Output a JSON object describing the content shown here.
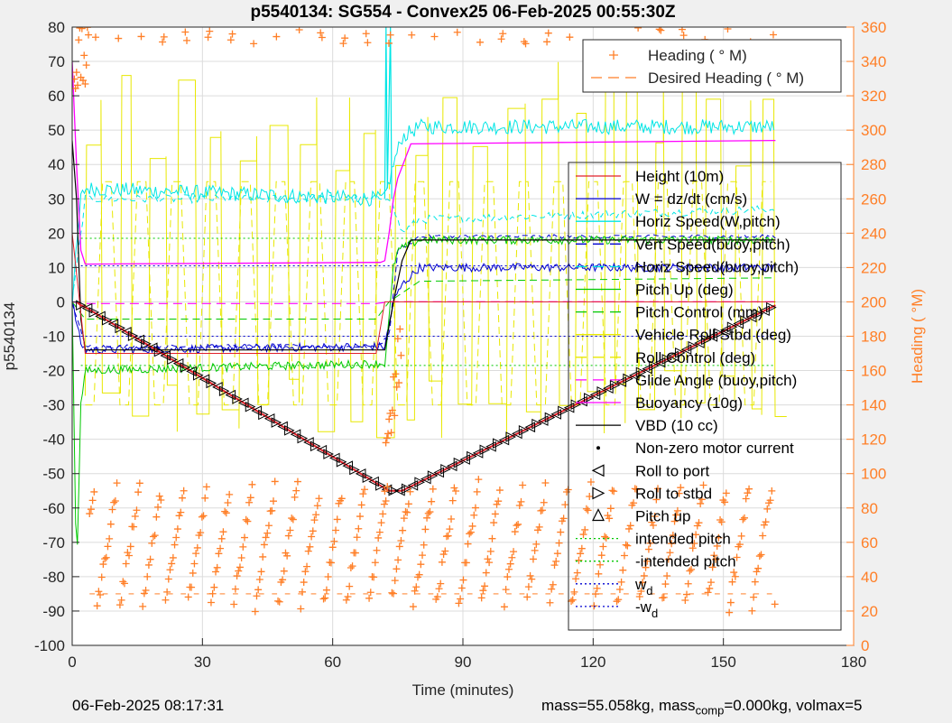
{
  "chart_data": {
    "type": "line",
    "title": "p5540134: SG554 - Convex25 06-Feb-2025 00:55:30Z",
    "xlabel": "Time (minutes)",
    "ylabel": "p5540134",
    "y2label": "Heading (  °M)",
    "xlim": [
      0,
      180
    ],
    "ylim": [
      -100,
      80
    ],
    "y2lim": [
      0,
      360
    ],
    "xticks": [
      "0",
      "30",
      "60",
      "90",
      "120",
      "150",
      "180"
    ],
    "yticks": [
      "-100",
      "-90",
      "-80",
      "-70",
      "-60",
      "-50",
      "-40",
      "-30",
      "-20",
      "-10",
      "0",
      "10",
      "20",
      "30",
      "40",
      "50",
      "60",
      "70",
      "80"
    ],
    "y2ticks": [
      "0",
      "20",
      "40",
      "60",
      "80",
      "100",
      "120",
      "140",
      "160",
      "180",
      "200",
      "220",
      "240",
      "260",
      "280",
      "300",
      "320",
      "340",
      "360"
    ],
    "grid": true,
    "legend_top": [
      {
        "name": "Heading (  ° M)",
        "color": "#ff7f27",
        "style": "plus"
      },
      {
        "name": "Desired Heading (    ° M)",
        "color": "#ff7f27",
        "style": "dash"
      }
    ],
    "legend_main": [
      {
        "name": "Height (10m)",
        "color": "#e0202a",
        "style": "solid"
      },
      {
        "name": "W = dz/dt (cm/s)",
        "color": "#0000d0",
        "style": "solid"
      },
      {
        "name": "Horiz Speed(W,pitch)",
        "color": "#00e5e5",
        "style": "solid"
      },
      {
        "name": "Vert Speed(buoy,pitch)",
        "color": "#0000d0",
        "style": "dash"
      },
      {
        "name": "Horiz Speed(buoy,pitch)",
        "color": "#00e5e5",
        "style": "dash"
      },
      {
        "name": "Pitch Up (deg)",
        "color": "#00c800",
        "style": "solid"
      },
      {
        "name": "Pitch Control (mm)",
        "color": "#00c800",
        "style": "dash"
      },
      {
        "name": "Vehicle Roll Stbd (deg)",
        "color": "#e8e800",
        "style": "solid"
      },
      {
        "name": "Roll Control (deg)",
        "color": "#e8e800",
        "style": "dash"
      },
      {
        "name": "Glide Angle (buoy,pitch)",
        "color": "#ff00ff",
        "style": "dash"
      },
      {
        "name": "Buoyancy (10g)",
        "color": "#ff00ff",
        "style": "solid"
      },
      {
        "name": "VBD (10 cc)",
        "color": "#000000",
        "style": "solid"
      },
      {
        "name": "Non-zero motor current",
        "color": "#000000",
        "style": "dot"
      },
      {
        "name": "Roll to port",
        "color": "#000000",
        "style": "tri-left"
      },
      {
        "name": "Roll to stbd",
        "color": "#000000",
        "style": "tri-right"
      },
      {
        "name": "Pitch up",
        "color": "#000000",
        "style": "tri-up"
      },
      {
        "name": "intended pitch",
        "color": "#00c800",
        "style": "dotted"
      },
      {
        "name": "-intended pitch",
        "color": "#00c800",
        "style": "dotted"
      },
      {
        "name": "w",
        "sub": "d",
        "color": "#0000d0",
        "style": "dotted"
      },
      {
        "name": "-w",
        "sub": "d",
        "color": "#0000d0",
        "style": "dotted"
      }
    ],
    "series": {
      "depth_dive": {
        "x": [
          1,
          2,
          3,
          73
        ],
        "y": [
          0,
          -1,
          -1.5,
          -55
        ]
      },
      "depth_climb": {
        "x": [
          73,
          76,
          162
        ],
        "y": [
          -55,
          -55,
          -1
        ]
      },
      "buoyancy": {
        "x": [
          0,
          1,
          2,
          3,
          71,
          72,
          73,
          74,
          75,
          78,
          162
        ],
        "y": [
          70,
          40,
          15,
          11,
          11.5,
          12,
          20,
          30,
          36,
          46,
          47
        ]
      },
      "w": {
        "x": [
          0,
          2,
          3,
          70,
          72,
          74,
          76,
          80,
          162
        ],
        "y": [
          0,
          -12,
          -14,
          -13,
          -13,
          0,
          5,
          10,
          10
        ]
      },
      "horiz_speed_w": {
        "x": [
          0,
          2,
          3,
          70,
          72,
          74,
          76,
          80,
          162
        ],
        "y": [
          0,
          30,
          33,
          30,
          30,
          40,
          48,
          51,
          51
        ]
      },
      "horiz_speed_buoy": {
        "x": [
          0,
          3,
          70,
          73,
          76,
          80,
          162
        ],
        "y": [
          0,
          30,
          30,
          31,
          20,
          24,
          27
        ]
      },
      "vert_speed_buoy": {
        "x": [
          0,
          3,
          70,
          73,
          75,
          80,
          162
        ],
        "y": [
          0,
          -13,
          -13,
          -10,
          15,
          19,
          19
        ]
      },
      "pitch_up": {
        "x": [
          0,
          1,
          2,
          3,
          70,
          72,
          73,
          74,
          75,
          80,
          162
        ],
        "y": [
          0,
          -80,
          -30,
          -20,
          -18,
          -18,
          -5,
          10,
          15,
          18,
          18
        ]
      },
      "pitch_control": {
        "x": [
          0,
          3,
          70,
          73,
          80,
          162
        ],
        "y": [
          0,
          -5,
          -5,
          0,
          6,
          7
        ]
      },
      "vbd": {
        "x": [
          0,
          1,
          2,
          3,
          72,
          74,
          76,
          78,
          162
        ],
        "y": [
          47,
          30,
          -5,
          -14,
          -14,
          0,
          12,
          18,
          18
        ]
      },
      "glide_angle": {
        "x": [
          0,
          3,
          70,
          73,
          80,
          162
        ],
        "y": [
          0,
          -0.5,
          -0.5,
          0,
          0,
          0
        ]
      },
      "heading_ref": {
        "x": [
          0,
          3,
          70,
          72,
          74,
          76,
          80,
          162
        ],
        "y": [
          20,
          -15,
          -15,
          0,
          0,
          0,
          0,
          0
        ]
      }
    },
    "reference_lines": {
      "intended_pitch": 18.5,
      "neg_intended_pitch": -18.5,
      "w_d": 10.5,
      "neg_w_d": -10
    },
    "spike": {
      "x": [
        72,
        72.3,
        72.6,
        73.3,
        73.6
      ],
      "y": [
        30,
        80,
        33,
        80,
        30
      ]
    }
  },
  "footer": {
    "timestamp": "06-Feb-2025 08:17:31",
    "mass_text": "mass=55.058kg, mass",
    "comp_sub": "comp",
    "comp_text": "=0.000kg, volmax=5"
  }
}
